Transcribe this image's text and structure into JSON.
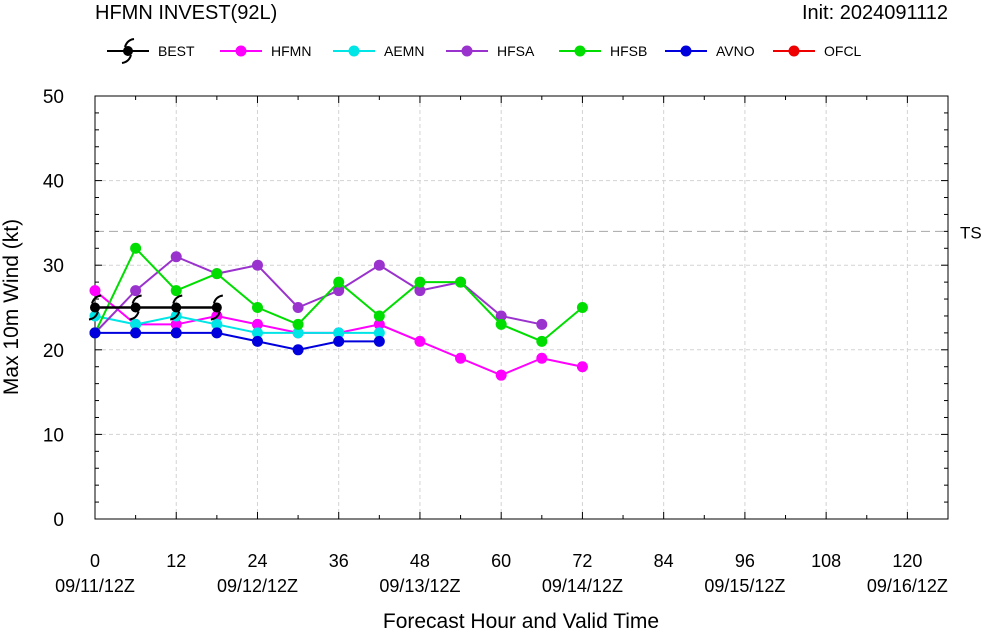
{
  "chart_data": {
    "type": "line",
    "title": "HFMN INVEST(92L)",
    "init_label": "Init: 2024091112",
    "xlabel": "Forecast Hour and Valid Time",
    "ylabel": "Max 10m Wind (kt)",
    "xlim": [
      0,
      126
    ],
    "ylim": [
      0,
      50
    ],
    "x_ticks": [
      0,
      12,
      24,
      36,
      48,
      60,
      72,
      84,
      96,
      108,
      120
    ],
    "x_tick_labels": [
      "0",
      "12",
      "24",
      "36",
      "48",
      "60",
      "72",
      "84",
      "96",
      "108",
      "120"
    ],
    "date_ticks": [
      {
        "x": 0,
        "label": "09/11/12Z"
      },
      {
        "x": 24,
        "label": "09/12/12Z"
      },
      {
        "x": 48,
        "label": "09/13/12Z"
      },
      {
        "x": 72,
        "label": "09/14/12Z"
      },
      {
        "x": 96,
        "label": "09/15/12Z"
      },
      {
        "x": 120,
        "label": "09/16/12Z"
      }
    ],
    "y_ticks": [
      0,
      10,
      20,
      30,
      40,
      50
    ],
    "y_tick_labels": [
      "0",
      "10",
      "20",
      "30",
      "40",
      "50"
    ],
    "grid": true,
    "legend_position": "top",
    "reference_lines": [
      {
        "y": 34,
        "label": "TS"
      }
    ],
    "series": [
      {
        "name": "BEST",
        "color": "#000000",
        "marker": "hurricane-symbol",
        "x": [
          0,
          6,
          12,
          18
        ],
        "y": [
          25,
          25,
          25,
          25
        ]
      },
      {
        "name": "HFMN",
        "color": "#ff00ff",
        "marker": "circle",
        "x": [
          0,
          6,
          12,
          18,
          24,
          30,
          36,
          42,
          48,
          54,
          60,
          66,
          72
        ],
        "y": [
          27,
          23,
          23,
          24,
          23,
          22,
          22,
          23,
          21,
          19,
          17,
          19,
          18
        ]
      },
      {
        "name": "AEMN",
        "color": "#00e5e5",
        "marker": "circle",
        "x": [
          0,
          6,
          12,
          18,
          24,
          30,
          36,
          42
        ],
        "y": [
          24,
          23,
          24,
          23,
          22,
          22,
          22,
          22
        ]
      },
      {
        "name": "HFSA",
        "color": "#9a32cd",
        "marker": "circle",
        "x": [
          0,
          6,
          12,
          18,
          24,
          30,
          36,
          42,
          48,
          54,
          60,
          66
        ],
        "y": [
          22,
          27,
          31,
          29,
          30,
          25,
          27,
          30,
          27,
          28,
          24,
          23
        ]
      },
      {
        "name": "HFSB",
        "color": "#00dd00",
        "marker": "circle",
        "x": [
          0,
          6,
          12,
          18,
          24,
          30,
          36,
          42,
          48,
          54,
          60,
          66,
          72
        ],
        "y": [
          22,
          32,
          27,
          29,
          25,
          23,
          28,
          24,
          28,
          28,
          23,
          21,
          25
        ]
      },
      {
        "name": "AVNO",
        "color": "#0000dd",
        "marker": "circle",
        "x": [
          0,
          6,
          12,
          18,
          24,
          30,
          36,
          42
        ],
        "y": [
          22,
          22,
          22,
          22,
          21,
          20,
          21,
          21
        ]
      },
      {
        "name": "OFCL",
        "color": "#ee0000",
        "marker": "circle",
        "x": [],
        "y": []
      }
    ]
  }
}
